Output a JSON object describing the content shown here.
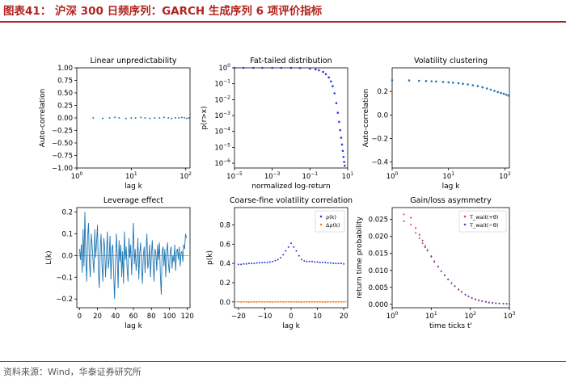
{
  "header": {
    "figure_title": "图表41：  沪深 300 日频序列：GARCH 生成序列 6 项评价指标"
  },
  "footer": {
    "source": "资料来源：Wind，华泰证券研究所"
  },
  "colors": {
    "title_red": "#b1251f",
    "series_blue": "#1f77b4",
    "dot_blue": "#2c39d6",
    "dot_orange": "#ff7f0e",
    "dot_red": "#e8334a",
    "dot_violet": "#6a3fb0"
  },
  "chart_data": [
    {
      "type": "scatter",
      "title": "Linear unpredictability",
      "xlabel": "lag k",
      "ylabel": "Auto-correlation",
      "xscale": "log",
      "xlim": [
        1,
        120
      ],
      "ylim": [
        -1.0,
        1.0
      ],
      "yticks": [
        "1.00",
        "0.75",
        "0.50",
        "0.25",
        "0.00",
        "−0.25",
        "−0.50",
        "−0.75",
        "−1.00"
      ],
      "xticks": [
        "10^0",
        "10^1",
        "10^2"
      ],
      "series": [
        {
          "x": [
            1,
            2,
            3,
            4,
            5,
            6,
            8,
            10,
            12,
            15,
            18,
            22,
            27,
            33,
            40,
            48,
            55,
            65,
            75,
            85,
            95,
            105,
            115
          ],
          "y": [
            0.01,
            0.0,
            -0.01,
            0.0,
            0.01,
            0.0,
            -0.01,
            0.0,
            0.0,
            0.01,
            0.0,
            -0.01,
            0.0,
            0.0,
            0.01,
            0.0,
            -0.01,
            0.0,
            0.0,
            0.01,
            0.0,
            -0.01,
            0.0
          ]
        }
      ]
    },
    {
      "type": "scatter",
      "title": "Fat-tailed distribution",
      "xlabel": "normalized log-return",
      "ylabel": "p(r>x)",
      "xscale": "log",
      "yscale": "log",
      "xlim": [
        1e-05,
        10
      ],
      "ylim": [
        5e-07,
        1
      ],
      "xticks": [
        "10^-5",
        "10^-3",
        "10^-1",
        "10^1"
      ],
      "yticks": [
        "10^0",
        "10^-1",
        "10^-2",
        "10^-3",
        "10^-4",
        "10^-5",
        "10^-6"
      ],
      "series": [
        {
          "x": [
            1e-05,
            3e-05,
            0.0001,
            0.0003,
            0.001,
            0.003,
            0.01,
            0.03,
            0.1,
            0.2,
            0.3,
            0.5,
            0.7,
            1.0,
            1.3,
            1.6,
            2.0,
            2.5,
            3.0,
            3.5,
            4.0,
            4.5,
            5.0,
            5.5,
            6.0,
            6.5,
            7.0
          ],
          "y": [
            1.0,
            1.0,
            1.0,
            0.999,
            0.998,
            0.996,
            0.99,
            0.97,
            0.9,
            0.8,
            0.7,
            0.55,
            0.4,
            0.25,
            0.14,
            0.07,
            0.025,
            0.006,
            0.0015,
            0.0004,
            0.00012,
            4e-05,
            1.5e-05,
            6e-06,
            2.5e-06,
            1.2e-06,
            7e-07
          ]
        }
      ]
    },
    {
      "type": "scatter",
      "title": "Volatility clustering",
      "xlabel": "lag k",
      "ylabel": "Auto-correlation",
      "xscale": "log",
      "xlim": [
        1,
        120
      ],
      "ylim": [
        -0.45,
        0.4
      ],
      "yticks": [
        "0.2",
        "0.0",
        "−0.2",
        "−0.4"
      ],
      "xticks": [
        "10^0",
        "10^1",
        "10^2"
      ],
      "series": [
        {
          "x": [
            1,
            2,
            3,
            4,
            5,
            6,
            8,
            10,
            12,
            15,
            18,
            22,
            27,
            33,
            40,
            48,
            56,
            65,
            75,
            85,
            95,
            105,
            115
          ],
          "y": [
            0.295,
            0.293,
            0.29,
            0.288,
            0.286,
            0.284,
            0.28,
            0.277,
            0.274,
            0.27,
            0.265,
            0.26,
            0.252,
            0.245,
            0.235,
            0.225,
            0.215,
            0.205,
            0.195,
            0.187,
            0.18,
            0.173,
            0.165
          ]
        }
      ]
    },
    {
      "type": "line",
      "title": "Leverage effect",
      "xlabel": "lag k",
      "ylabel": "L(k)",
      "xlim": [
        -3,
        123
      ],
      "ylim": [
        -0.24,
        0.22
      ],
      "xticks": [
        "0",
        "20",
        "40",
        "60",
        "80",
        "100",
        "120"
      ],
      "yticks": [
        "0.2",
        "0.1",
        "0.0",
        "−0.1",
        "−0.2"
      ],
      "series": [
        {
          "y": [
            0.03,
            -0.02,
            0.05,
            -0.08,
            0.12,
            -0.05,
            0.2,
            0.0,
            -0.12,
            0.08,
            0.15,
            -0.03,
            -0.1,
            0.1,
            0.05,
            -0.02,
            -0.08,
            0.12,
            -0.01,
            0.06,
            0.14,
            -0.07,
            -0.15,
            0.02,
            0.1,
            -0.04,
            -0.12,
            0.08,
            0.04,
            -0.1,
            0.0,
            0.11,
            -0.06,
            -0.02,
            0.09,
            -0.11,
            0.03,
            0.05,
            -0.08,
            -0.2,
            -0.05,
            0.1,
            0.0,
            -0.15,
            0.07,
            -0.03,
            0.05,
            -0.1,
            0.02,
            -0.13,
            0.11,
            -0.02,
            0.04,
            -0.06,
            -0.12,
            0.08,
            -0.01,
            0.05,
            -0.09,
            0.02,
            0.15,
            -0.04,
            0.03,
            -0.07,
            -0.02,
            0.08,
            -0.11,
            0.01,
            0.06,
            -0.05,
            -0.13,
            0.0,
            0.04,
            -0.08,
            0.02,
            0.1,
            -0.06,
            -0.03,
            0.05,
            -0.1,
            0.0,
            0.07,
            -0.04,
            -0.12,
            0.03,
            0.01,
            -0.07,
            0.05,
            -0.02,
            0.06,
            -0.09,
            -0.18,
            0.02,
            0.04,
            -0.05,
            0.03,
            -0.1,
            0.01,
            0.06,
            -0.04,
            -0.08,
            0.02,
            0.04,
            -0.06,
            0.0,
            -0.03,
            0.05,
            -0.07,
            0.02,
            0.03,
            -0.02,
            0.04,
            -0.05,
            0.01,
            0.02,
            -0.03,
            0.05,
            0.03,
            0.1,
            0.08
          ]
        }
      ]
    },
    {
      "type": "scatter",
      "title": "Coarse-fine volatility correlation",
      "xlabel": "lag k",
      "ylabel": "p(k)",
      "xlim": [
        -21.5,
        21.5
      ],
      "ylim": [
        -0.06,
        0.98
      ],
      "xticks": [
        "−20",
        "−10",
        "0",
        "10",
        "20"
      ],
      "yticks": [
        "0.8",
        "0.6",
        "0.4",
        "0.2",
        "0.0"
      ],
      "legend": "top-right",
      "series": [
        {
          "name": "ρ(k)",
          "x": [
            -20,
            -19,
            -18,
            -17,
            -16,
            -15,
            -14,
            -13,
            -12,
            -11,
            -10,
            -9,
            -8,
            -7,
            -6,
            -5,
            -4,
            -3,
            -2,
            -1,
            0,
            1,
            2,
            3,
            4,
            5,
            6,
            7,
            8,
            9,
            10,
            11,
            12,
            13,
            14,
            15,
            16,
            17,
            18,
            19,
            20
          ],
          "y": [
            0.39,
            0.39,
            0.395,
            0.395,
            0.4,
            0.4,
            0.4,
            0.405,
            0.405,
            0.41,
            0.41,
            0.41,
            0.415,
            0.42,
            0.43,
            0.44,
            0.46,
            0.49,
            0.53,
            0.57,
            0.61,
            0.57,
            0.53,
            0.48,
            0.44,
            0.425,
            0.42,
            0.42,
            0.42,
            0.415,
            0.415,
            0.41,
            0.41,
            0.41,
            0.405,
            0.405,
            0.4,
            0.4,
            0.4,
            0.4,
            0.395
          ]
        },
        {
          "name": "Δρ(k)",
          "x": [
            -20,
            -19,
            -18,
            -17,
            -16,
            -15,
            -14,
            -13,
            -12,
            -11,
            -10,
            -9,
            -8,
            -7,
            -6,
            -5,
            -4,
            -3,
            -2,
            -1,
            0,
            1,
            2,
            3,
            4,
            5,
            6,
            7,
            8,
            9,
            10,
            11,
            12,
            13,
            14,
            15,
            16,
            17,
            18,
            19,
            20
          ],
          "y": [
            0.002,
            -0.001,
            0.001,
            0.0,
            -0.002,
            0.001,
            0.0,
            -0.001,
            0.002,
            0.0,
            -0.001,
            0.001,
            0.0,
            -0.002,
            0.001,
            0.0,
            0.002,
            -0.001,
            0.0,
            0.001,
            0.0,
            -0.001,
            0.001,
            0.0,
            -0.002,
            0.001,
            0.0,
            -0.001,
            0.002,
            0.0,
            -0.001,
            0.001,
            0.0,
            -0.002,
            0.001,
            0.0,
            0.002,
            -0.001,
            0.0,
            0.001,
            0.0
          ]
        }
      ]
    },
    {
      "type": "scatter",
      "title": "Gain/loss asymmetry",
      "xlabel": "time ticks t'",
      "ylabel": "return time probability",
      "xscale": "log",
      "xlim": [
        1,
        1000
      ],
      "ylim": [
        -0.001,
        0.0285
      ],
      "xticks": [
        "10^0",
        "10^1",
        "10^2",
        "10^3"
      ],
      "yticks": [
        "0.025",
        "0.020",
        "0.015",
        "0.010",
        "0.005",
        "0.000"
      ],
      "legend": "top-right",
      "series": [
        {
          "name": "T_wait(+θ)",
          "x": [
            2,
            3,
            4,
            5,
            6,
            7,
            8,
            10,
            12,
            15,
            18,
            22,
            27,
            33,
            40,
            50,
            60,
            75,
            90,
            110,
            135,
            165,
            200,
            250,
            300,
            370,
            450,
            550,
            700,
            850,
            1000
          ],
          "y": [
            0.0265,
            0.0235,
            0.021,
            0.0195,
            0.018,
            0.0168,
            0.0158,
            0.014,
            0.0125,
            0.011,
            0.0097,
            0.0085,
            0.0073,
            0.0062,
            0.0053,
            0.0043,
            0.0036,
            0.0028,
            0.0023,
            0.0018,
            0.0014,
            0.0011,
            0.0009,
            0.0007,
            0.0005,
            0.0004,
            0.0003,
            0.00025,
            0.0002,
            0.00015,
            0.0001
          ]
        },
        {
          "name": "T_wait(−θ)",
          "x": [
            2,
            3,
            4,
            5,
            6,
            7,
            8,
            10,
            12,
            15,
            18,
            22,
            27,
            33,
            40,
            50,
            60,
            75,
            90,
            110,
            135,
            165,
            200,
            250,
            300,
            370,
            450,
            550,
            700,
            850,
            1000
          ],
          "y": [
            0.0245,
            0.0255,
            0.0225,
            0.0205,
            0.0188,
            0.0172,
            0.016,
            0.0142,
            0.0127,
            0.0112,
            0.0098,
            0.0086,
            0.0074,
            0.0063,
            0.0054,
            0.0044,
            0.0037,
            0.0029,
            0.0024,
            0.0019,
            0.0015,
            0.0012,
            0.00095,
            0.00075,
            0.00055,
            0.00045,
            0.00035,
            0.00028,
            0.00022,
            0.00017,
            0.00012
          ]
        }
      ]
    }
  ]
}
